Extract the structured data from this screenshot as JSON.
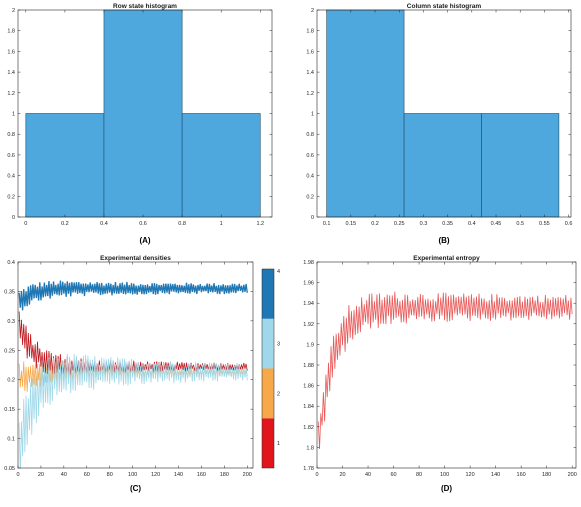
{
  "chart_data": [
    {
      "type": "bar",
      "title": "Row state histogram",
      "caption": "(A)",
      "bin_edges": [
        0,
        0.4,
        0.8,
        1.2
      ],
      "values": [
        1,
        2,
        1
      ],
      "xlim": [
        -0.04,
        1.26
      ],
      "ylim": [
        0,
        2
      ],
      "xticks": [
        0,
        0.2,
        0.4,
        0.6,
        0.8,
        1,
        1.2
      ],
      "xtick_labels": [
        "0",
        "0.2",
        "0.4",
        "0.6",
        "0.8",
        "1",
        "1.2"
      ],
      "yticks": [
        0,
        0.2,
        0.4,
        0.6,
        0.8,
        1,
        1.2,
        1.4,
        1.6,
        1.8,
        2
      ],
      "ytick_labels": [
        "0",
        "0.2",
        "0.4",
        "0.6",
        "0.8",
        "1",
        "1.2",
        "1.4",
        "1.6",
        "1.8",
        "2"
      ],
      "bar_color": "#4ea8de",
      "grid": false
    },
    {
      "type": "bar",
      "title": "Column state histogram",
      "caption": "(B)",
      "bin_edges": [
        0.1,
        0.26,
        0.42,
        0.58
      ],
      "values": [
        2,
        1,
        1
      ],
      "xlim": [
        0.08,
        0.605
      ],
      "ylim": [
        0,
        2
      ],
      "xticks": [
        0.1,
        0.15,
        0.2,
        0.25,
        0.3,
        0.35,
        0.4,
        0.45,
        0.5,
        0.55,
        0.6
      ],
      "xtick_labels": [
        "0.1",
        "0.15",
        "0.2",
        "0.25",
        "0.3",
        "0.35",
        "0.4",
        "0.45",
        "0.5",
        "0.55",
        "0.6"
      ],
      "yticks": [
        0,
        0.2,
        0.4,
        0.6,
        0.8,
        1,
        1.2,
        1.4,
        1.6,
        1.8,
        2
      ],
      "ytick_labels": [
        "0",
        "0.2",
        "0.4",
        "0.6",
        "0.8",
        "1",
        "1.2",
        "1.4",
        "1.6",
        "1.8",
        "2"
      ],
      "bar_color": "#4ea8de",
      "grid": false
    },
    {
      "type": "line",
      "title": "Experimental densities",
      "caption": "(C)",
      "xlim": [
        0,
        205
      ],
      "ylim": [
        0.05,
        0.4
      ],
      "xticks": [
        0,
        20,
        40,
        60,
        80,
        100,
        120,
        140,
        160,
        180,
        200
      ],
      "xtick_labels": [
        "0",
        "20",
        "40",
        "60",
        "80",
        "100",
        "120",
        "140",
        "160",
        "180",
        "200"
      ],
      "yticks": [
        0.05,
        0.1,
        0.15,
        0.2,
        0.25,
        0.3,
        0.35,
        0.4
      ],
      "ytick_labels": [
        "0.05",
        "0.1",
        "0.15",
        "0.2",
        "0.25",
        "0.3",
        "0.35",
        "0.4"
      ],
      "colorbar": {
        "labels": [
          "1",
          "2",
          "3",
          "4"
        ],
        "colors": [
          "#e0161c",
          "#f7a94a",
          "#9fd8ea",
          "#1f77b4"
        ]
      },
      "series": [
        {
          "color": "#1f77b4",
          "start": 0.33,
          "mean": 0.355,
          "amp_start": 0.02,
          "amp_end": 0.009
        },
        {
          "color": "#c0161c",
          "start": 0.3,
          "mean": 0.222,
          "amp_start": 0.03,
          "amp_end": 0.006
        },
        {
          "color": "#f7a94a",
          "start": 0.2,
          "mean": 0.212,
          "amp_start": 0.03,
          "amp_end": 0.006
        },
        {
          "color": "#9fd8ea",
          "start": 0.06,
          "mean": 0.213,
          "amp_start": 0.06,
          "amp_end": 0.015
        }
      ],
      "grid": false
    },
    {
      "type": "line",
      "title": "Experimental entropy",
      "caption": "(D)",
      "xlim": [
        0,
        203
      ],
      "ylim": [
        1.78,
        1.98
      ],
      "xticks": [
        0,
        20,
        40,
        60,
        80,
        100,
        120,
        140,
        160,
        180,
        200
      ],
      "xtick_labels": [
        "0",
        "20",
        "40",
        "60",
        "80",
        "100",
        "120",
        "140",
        "160",
        "180",
        "200"
      ],
      "yticks": [
        1.78,
        1.8,
        1.82,
        1.84,
        1.86,
        1.88,
        1.9,
        1.92,
        1.94,
        1.96,
        1.98
      ],
      "ytick_labels": [
        "1.78",
        "1.8",
        "1.82",
        "1.84",
        "1.86",
        "1.88",
        "1.9",
        "1.92",
        "1.94",
        "1.96",
        "1.98"
      ],
      "series": [
        {
          "color": "#e85a5a",
          "start": 1.79,
          "mean": 1.936,
          "amp_start": 0.025,
          "amp_end": 0.012
        }
      ],
      "grid": false
    }
  ]
}
